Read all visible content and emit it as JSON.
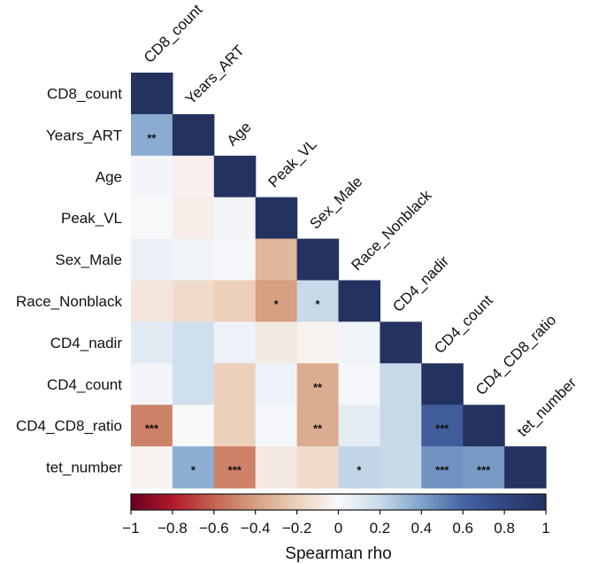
{
  "chart_data": {
    "type": "heatmap",
    "title": "",
    "variables": [
      "CD8_count",
      "Years_ART",
      "Age",
      "Peak_VL",
      "Sex_Male",
      "Race_Nonblack",
      "CD4_nadir",
      "CD4_count",
      "CD4_CD8_ratio",
      "tet_number"
    ],
    "layout": "lower-triangle",
    "values": [
      [
        1.0
      ],
      [
        0.37,
        1.0
      ],
      [
        0.03,
        -0.05,
        1.0
      ],
      [
        0.01,
        -0.06,
        0.03,
        1.0
      ],
      [
        0.06,
        0.04,
        0.02,
        -0.3,
        1.0
      ],
      [
        -0.1,
        -0.15,
        -0.2,
        -0.4,
        0.2,
        1.0
      ],
      [
        0.1,
        0.17,
        0.05,
        -0.08,
        -0.04,
        0.04,
        1.0
      ],
      [
        0.03,
        0.17,
        -0.2,
        0.05,
        -0.35,
        0.02,
        0.2,
        1.0
      ],
      [
        -0.5,
        -0.01,
        -0.2,
        0.02,
        -0.35,
        0.09,
        0.2,
        0.65,
        1.0
      ],
      [
        -0.04,
        0.36,
        -0.5,
        -0.08,
        -0.15,
        0.22,
        0.2,
        0.45,
        0.43,
        1.0
      ]
    ],
    "significance": [
      [
        ""
      ],
      [
        "**",
        ""
      ],
      [
        "",
        "",
        ""
      ],
      [
        "",
        "",
        "",
        ""
      ],
      [
        "",
        "",
        "",
        "",
        ""
      ],
      [
        "",
        "",
        "",
        "*",
        "*",
        ""
      ],
      [
        "",
        "",
        "",
        "",
        "",
        "",
        ""
      ],
      [
        "",
        "",
        "",
        "",
        "**",
        "",
        "",
        ""
      ],
      [
        "***",
        "",
        "",
        "",
        "**",
        "",
        "",
        "***",
        ""
      ],
      [
        "",
        "*",
        "***",
        "",
        "",
        "*",
        "",
        "***",
        "***",
        ""
      ]
    ],
    "colorbar": {
      "label": "Spearman rho",
      "range": [
        -1,
        1
      ],
      "ticks": [
        -1,
        -0.8,
        -0.6,
        -0.4,
        -0.2,
        0,
        0.2,
        0.4,
        0.6,
        0.8,
        1
      ],
      "tick_labels": [
        "−1",
        "−0.8",
        "−0.6",
        "−0.4",
        "−0.2",
        "0",
        "0.2",
        "0.4",
        "0.6",
        "0.8",
        "1"
      ],
      "colormap": "RdBu",
      "placement": "bottom"
    },
    "palette": {
      "neg_end": "#67001f",
      "neg_mid": "#d6604d",
      "neg_light": "#f4a582",
      "neutral": "#f7f7f7",
      "pos_light": "#92c5de",
      "pos_mid": "#4393c3",
      "pos_end": "#253465"
    }
  }
}
